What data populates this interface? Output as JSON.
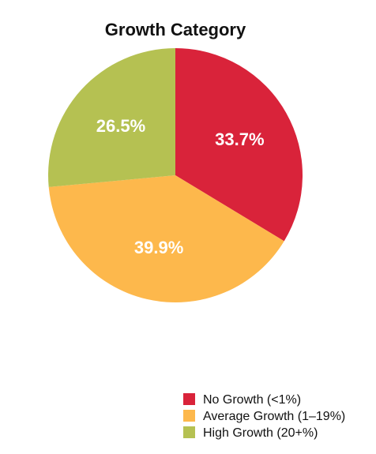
{
  "chart_data": {
    "type": "pie",
    "title": "Growth Category",
    "start_angle_deg": 0,
    "direction": "clockwise",
    "slices": [
      {
        "label": "No Growth (<1%)",
        "value": 33.7,
        "value_label": "33.7%",
        "color": "#d9233a"
      },
      {
        "label": "Average Growth (1–19%)",
        "value": 39.9,
        "value_label": "39.9%",
        "color": "#fdb84c"
      },
      {
        "label": "High Growth (20+%)",
        "value": 26.5,
        "value_label": "26.5%",
        "color": "#b5c152"
      }
    ],
    "legend_position": "bottom-right"
  }
}
